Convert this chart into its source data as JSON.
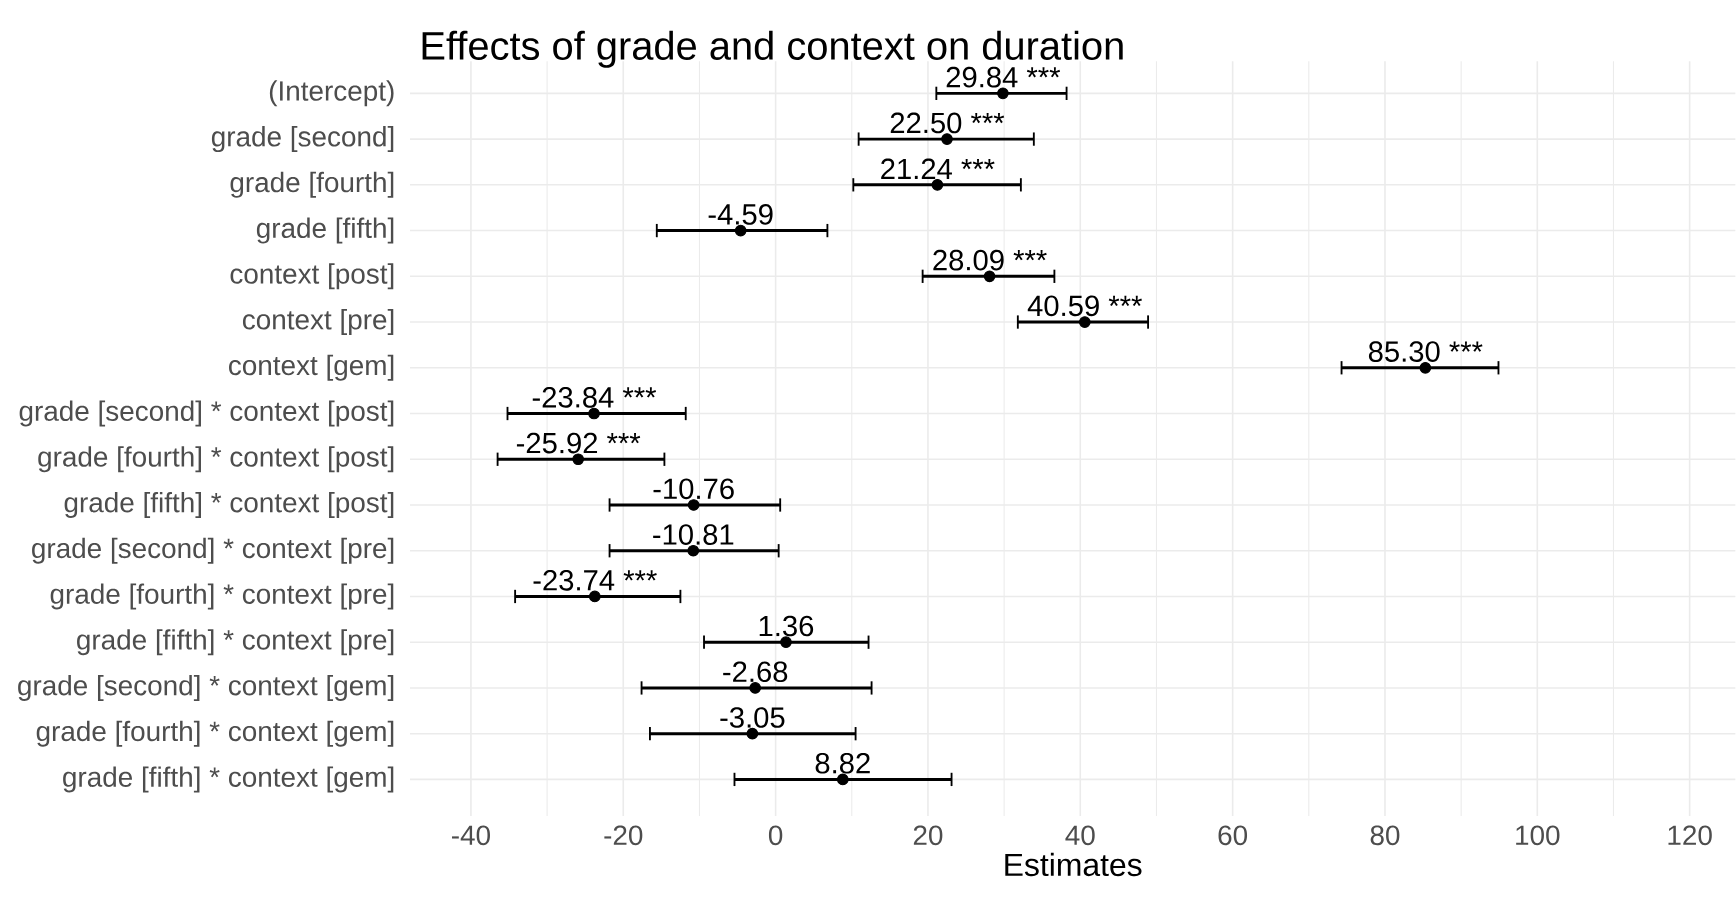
{
  "chart_data": {
    "type": "scatter",
    "orientation": "horizontal",
    "title": "Effects of grade and context on duration",
    "xlabel": "Estimates",
    "categories": [
      "(Intercept)",
      "grade [second]",
      "grade [fourth]",
      "grade [fifth]",
      "context [post]",
      "context [pre]",
      "context [gem]",
      "grade [second] * context [post]",
      "grade [fourth] * context [post]",
      "grade [fifth] * context [post]",
      "grade [second] * context [pre]",
      "grade [fourth] * context [pre]",
      "grade [fifth] * context [pre]",
      "grade [second] * context [gem]",
      "grade [fourth] * context [gem]",
      "grade [fifth] * context [gem]"
    ],
    "values": [
      29.84,
      22.5,
      21.24,
      -4.59,
      28.09,
      40.59,
      85.3,
      -23.84,
      -25.92,
      -10.76,
      -10.81,
      -23.74,
      1.36,
      -2.68,
      -3.05,
      8.82
    ],
    "errors": [
      [
        21.1,
        38.2
      ],
      [
        10.9,
        33.9
      ],
      [
        10.2,
        32.2
      ],
      [
        -15.6,
        6.8
      ],
      [
        19.3,
        36.6
      ],
      [
        31.8,
        48.9
      ],
      [
        74.3,
        94.9
      ],
      [
        -35.2,
        -11.8
      ],
      [
        -36.5,
        -14.6
      ],
      [
        -21.8,
        0.6
      ],
      [
        -21.8,
        0.4
      ],
      [
        -34.2,
        -12.5
      ],
      [
        -9.4,
        12.2
      ],
      [
        -17.6,
        12.6
      ],
      [
        -16.5,
        10.5
      ],
      [
        -5.4,
        23.1
      ]
    ],
    "value_labels": [
      "29.84 ***",
      "22.50 ***",
      "21.24 ***",
      "-4.59",
      "28.09 ***",
      "40.59 ***",
      "85.30 ***",
      "-23.84 ***",
      "-25.92 ***",
      "-10.76",
      "-10.81",
      "-23.74 ***",
      "1.36",
      "-2.68",
      "-3.05",
      "8.82"
    ],
    "color": "#000000",
    "marker": "circle",
    "grid": true,
    "xlim": [
      -48,
      126
    ],
    "xticks": [
      -40,
      -20,
      0,
      20,
      40,
      60,
      80,
      100,
      120
    ]
  }
}
